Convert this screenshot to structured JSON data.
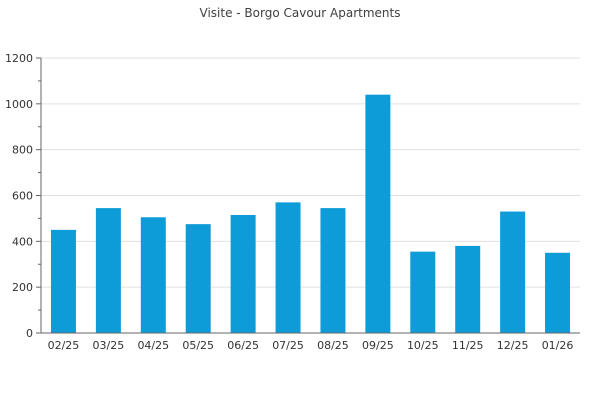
{
  "chart_data": {
    "type": "bar",
    "title": "Visite - Borgo Cavour Apartments",
    "categories": [
      "02/25",
      "03/25",
      "04/25",
      "05/25",
      "06/25",
      "07/25",
      "08/25",
      "09/25",
      "10/25",
      "11/25",
      "12/25",
      "01/26"
    ],
    "values": [
      450,
      545,
      505,
      475,
      515,
      570,
      545,
      1040,
      355,
      380,
      530,
      350
    ],
    "xlabel": "",
    "ylabel": "",
    "ylim": [
      0,
      1200
    ],
    "y_major_step": 200,
    "y_minor_step": 100,
    "grid": true,
    "legend": false,
    "colors": {
      "bar": "#0e9cd8",
      "gridline": "#e0e0e0",
      "axis": "#666666",
      "tick_label": "#333333",
      "title": "#404040",
      "background": "#ffffff"
    }
  }
}
